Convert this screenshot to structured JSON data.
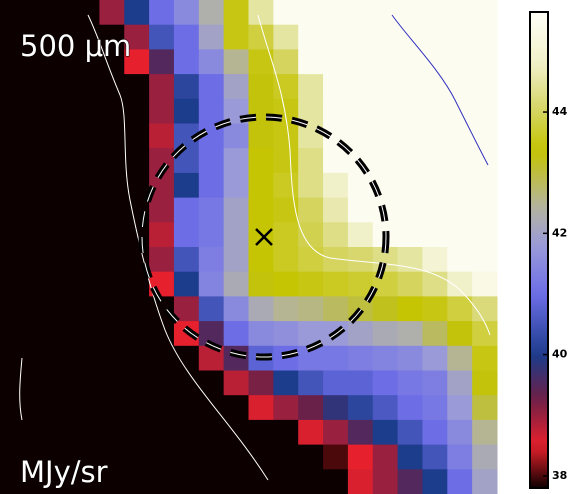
{
  "chart_data": {
    "type": "heatmap",
    "title": "500 μm",
    "colorbar_label": "MJy/sr",
    "zlim": [
      37.8,
      45.65
    ],
    "zticks": [
      38,
      40,
      42,
      44
    ],
    "z": [
      [
        37.8,
        37.8,
        37.8,
        37.8,
        39,
        40,
        41,
        41.5,
        42.3,
        43.5,
        44.5,
        45.5,
        45.5,
        45.5,
        45.5,
        45.5,
        45.5,
        45.5,
        45.5,
        45.5
      ],
      [
        37.8,
        37.8,
        37.8,
        37.8,
        37.8,
        39,
        40.5,
        41,
        42,
        43.5,
        43.8,
        44.5,
        45.5,
        45.5,
        45.5,
        45.5,
        45.5,
        45.5,
        45.5,
        45.5
      ],
      [
        37.8,
        37.8,
        37.8,
        37.8,
        37.8,
        38.5,
        39.5,
        41,
        41.5,
        42.5,
        43.5,
        44,
        45.5,
        45.5,
        45.5,
        45.5,
        45.5,
        45.5,
        45.5,
        45.5
      ],
      [
        37.8,
        37.8,
        37.8,
        37.8,
        37.8,
        37.8,
        39,
        40.2,
        41,
        42,
        43.3,
        43.6,
        44.5,
        45.5,
        45.5,
        45.5,
        45.5,
        45.5,
        45.5,
        45.5
      ],
      [
        37.8,
        37.8,
        37.8,
        37.8,
        37.8,
        37.8,
        39,
        40,
        41,
        41.8,
        43.3,
        43.5,
        44.5,
        45.5,
        45.5,
        45.5,
        45.5,
        45.5,
        45.5,
        45.5
      ],
      [
        37.8,
        37.8,
        37.8,
        37.8,
        37.8,
        37.8,
        38.8,
        40.5,
        41,
        41.5,
        43.3,
        43.5,
        44.5,
        45.5,
        45.5,
        45.5,
        45.5,
        45.5,
        45.5,
        45.5
      ],
      [
        37.8,
        37.8,
        37.8,
        37.8,
        37.8,
        37.8,
        39,
        40.5,
        41,
        41.8,
        43.4,
        43.5,
        44.3,
        45.5,
        45.5,
        45.5,
        45.5,
        45.5,
        45.5,
        45.5
      ],
      [
        37.8,
        37.8,
        37.8,
        37.8,
        37.8,
        37.8,
        39,
        40,
        41,
        41.8,
        43.4,
        43.6,
        44.3,
        44.8,
        45.5,
        45.5,
        45.5,
        45.5,
        45.5,
        45.5
      ],
      [
        37.8,
        37.8,
        37.8,
        37.8,
        37.8,
        37.8,
        39,
        41,
        41.2,
        42,
        43.4,
        43.5,
        44,
        44.6,
        45.5,
        45.5,
        45.5,
        45.5,
        45.5,
        45.5
      ],
      [
        37.8,
        37.8,
        37.8,
        37.8,
        37.8,
        37.8,
        38.8,
        41,
        41.2,
        42,
        43.4,
        43.6,
        43.9,
        44.3,
        44.8,
        45.5,
        45.5,
        45.5,
        45.5,
        45.5
      ],
      [
        37.8,
        37.8,
        37.8,
        37.8,
        37.8,
        37.8,
        39,
        40.5,
        41.3,
        42,
        43.4,
        43.6,
        43.8,
        44,
        44.1,
        44.3,
        44.5,
        45,
        45.5,
        45.5
      ],
      [
        37.8,
        37.8,
        37.8,
        37.8,
        37.8,
        37.8,
        38.5,
        40,
        41.4,
        42.2,
        43.3,
        43.4,
        43.5,
        43.6,
        43.7,
        43.8,
        44,
        44.3,
        44.8,
        45.3
      ],
      [
        37.8,
        37.8,
        37.8,
        37.8,
        37.8,
        37.8,
        37.8,
        39,
        40.5,
        41.5,
        42.2,
        42.5,
        42.6,
        42.8,
        43,
        43.2,
        43.4,
        43.5,
        43.8,
        44.2
      ],
      [
        37.8,
        37.8,
        37.8,
        37.8,
        37.8,
        37.8,
        37.8,
        38.5,
        39.5,
        41,
        41.5,
        41.6,
        41.8,
        41.8,
        42,
        42.2,
        42.3,
        42.8,
        43.3,
        43.8
      ],
      [
        37.8,
        37.8,
        37.8,
        37.8,
        37.8,
        37.8,
        37.8,
        37.8,
        38.8,
        39.5,
        40.8,
        41,
        41.2,
        41.2,
        41.3,
        41.4,
        41.5,
        41.8,
        42.5,
        43.5
      ],
      [
        37.8,
        37.8,
        37.8,
        37.8,
        37.8,
        37.8,
        37.8,
        37.8,
        37.8,
        38.8,
        39.2,
        40,
        40.5,
        40.8,
        40.8,
        41,
        41.2,
        41.3,
        42,
        43.3
      ],
      [
        37.8,
        37.8,
        37.8,
        37.8,
        37.8,
        37.8,
        37.8,
        37.8,
        37.8,
        37.8,
        38.6,
        39,
        39.3,
        39.8,
        40.2,
        40.6,
        41,
        41.2,
        41.8,
        43
      ],
      [
        37.8,
        37.8,
        37.8,
        37.8,
        37.8,
        37.8,
        37.8,
        37.8,
        37.8,
        37.8,
        37.8,
        37.8,
        38.6,
        39,
        39.5,
        40,
        40.5,
        41,
        41.5,
        42.5
      ],
      [
        37.8,
        37.8,
        37.8,
        37.8,
        37.8,
        37.8,
        37.8,
        37.8,
        37.8,
        37.8,
        37.8,
        37.8,
        37.8,
        38,
        38.5,
        39,
        40,
        40.5,
        41.3,
        42.2
      ],
      [
        37.8,
        37.8,
        37.8,
        37.8,
        37.8,
        37.8,
        37.8,
        37.8,
        37.8,
        37.8,
        37.8,
        37.8,
        37.8,
        37.8,
        38.6,
        39,
        39.5,
        40,
        41,
        42
      ]
    ]
  }
}
